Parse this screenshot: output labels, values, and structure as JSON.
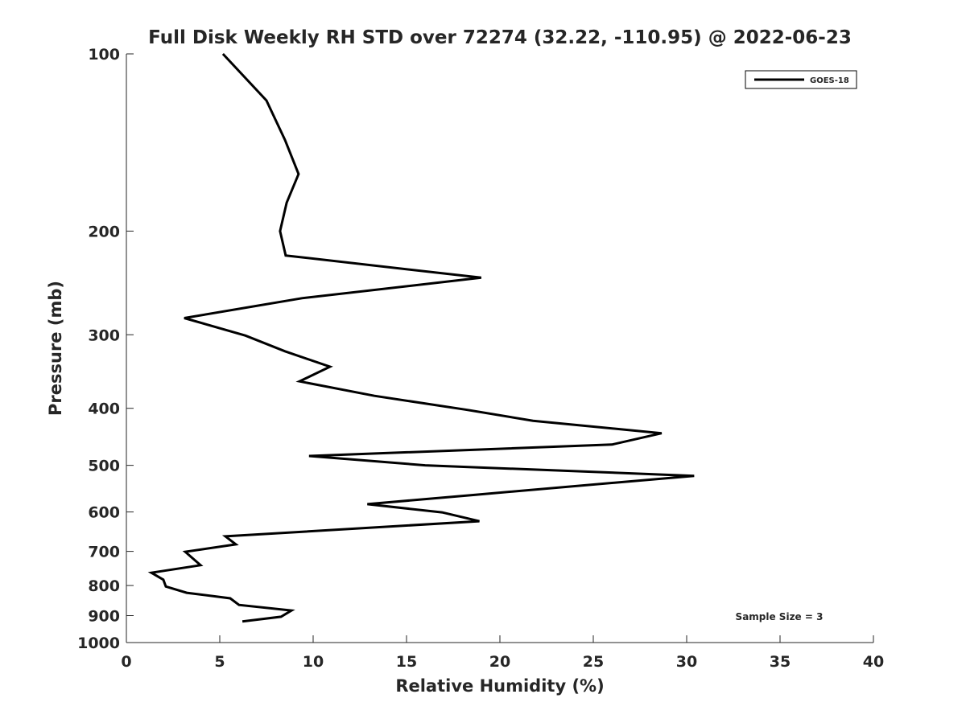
{
  "chart_data": {
    "type": "line",
    "title": "Full Disk Weekly RH STD over 72274 (32.22, -110.95) @ 2022-06-23",
    "xlabel": "Relative Humidity (%)",
    "ylabel": "Pressure (mb)",
    "xlim": [
      0,
      40
    ],
    "ylim": [
      100,
      1000
    ],
    "yscale": "log",
    "yreversed": true,
    "xticks": [
      0,
      5,
      10,
      15,
      20,
      25,
      30,
      35,
      40
    ],
    "yticks": [
      100,
      200,
      300,
      400,
      500,
      600,
      700,
      800,
      900,
      1000
    ],
    "grid": false,
    "legend": {
      "placement": "top-right",
      "entries": [
        "GOES-18"
      ]
    },
    "annotation": "Sample Size = 3",
    "series": [
      {
        "name": "GOES-18",
        "color": "#000000",
        "x": [
          5.17,
          7.5,
          8.49,
          9.22,
          8.58,
          8.23,
          8.53,
          19.0,
          9.4,
          3.1,
          6.38,
          8.49,
          10.9,
          9.27,
          13.28,
          18.15,
          21.77,
          28.66,
          26.0,
          9.78,
          16.0,
          30.4,
          18.7,
          12.9,
          16.9,
          18.9,
          5.3,
          5.86,
          3.15,
          3.97,
          1.34,
          1.98,
          2.11,
          3.23,
          5.56,
          6.03,
          8.84,
          8.28,
          6.21
        ],
        "y": [
          100,
          120,
          140,
          160,
          179,
          200,
          220,
          240,
          260,
          281,
          301,
          320,
          340,
          360,
          381,
          402,
          420,
          441,
          461,
          482,
          500,
          521,
          561,
          582,
          601,
          622,
          660,
          681,
          701,
          739,
          761,
          782,
          803,
          823,
          841,
          863,
          882,
          904,
          921
        ]
      }
    ]
  }
}
